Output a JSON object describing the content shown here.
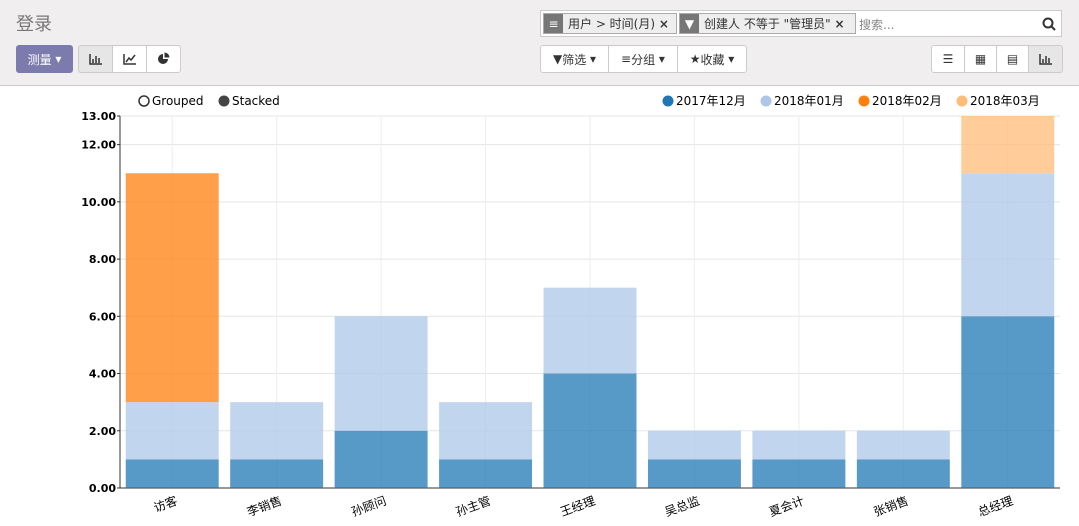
{
  "header": {
    "title": "登录",
    "measure": "测量",
    "facets": [
      "用户 > 时间(月)",
      "创建人 不等于 \"管理员\""
    ],
    "search_placeholder": "搜索...",
    "filter": "筛选",
    "group": "分组",
    "favorites": "收藏"
  },
  "chart_modes": [
    "Grouped",
    "Stacked"
  ],
  "chart_data": {
    "type": "stacked_bar",
    "categories": [
      "访客",
      "李销售",
      "孙顾问",
      "孙主管",
      "王经理",
      "吴总监",
      "夏会计",
      "张销售",
      "总经理"
    ],
    "series": [
      {
        "name": "2017年12月",
        "color": "#1f77b4",
        "values": [
          1,
          1,
          2,
          1,
          4,
          1,
          1,
          1,
          6
        ]
      },
      {
        "name": "2018年01月",
        "color": "#aec7e8",
        "values": [
          2,
          2,
          4,
          2,
          3,
          1,
          1,
          1,
          5
        ]
      },
      {
        "name": "2018年02月",
        "color": "#ff7f0e",
        "values": [
          8,
          0,
          0,
          0,
          0,
          0,
          0,
          0,
          0
        ]
      },
      {
        "name": "2018年03月",
        "color": "#ffbb78",
        "values": [
          0,
          0,
          0,
          0,
          0,
          0,
          0,
          0,
          2
        ]
      }
    ],
    "ylim": [
      0,
      13
    ],
    "yticks": [
      {
        "value": 0,
        "label": "0.00"
      },
      {
        "value": 2,
        "label": "2.00"
      },
      {
        "value": 4,
        "label": "4.00"
      },
      {
        "value": 6,
        "label": "6.00"
      },
      {
        "value": 8,
        "label": "8.00"
      },
      {
        "value": 10,
        "label": "10.00"
      },
      {
        "value": 12,
        "label": "12.00"
      },
      {
        "value": 13,
        "label": "13.00"
      }
    ],
    "grid": true,
    "legend": "top-right"
  }
}
